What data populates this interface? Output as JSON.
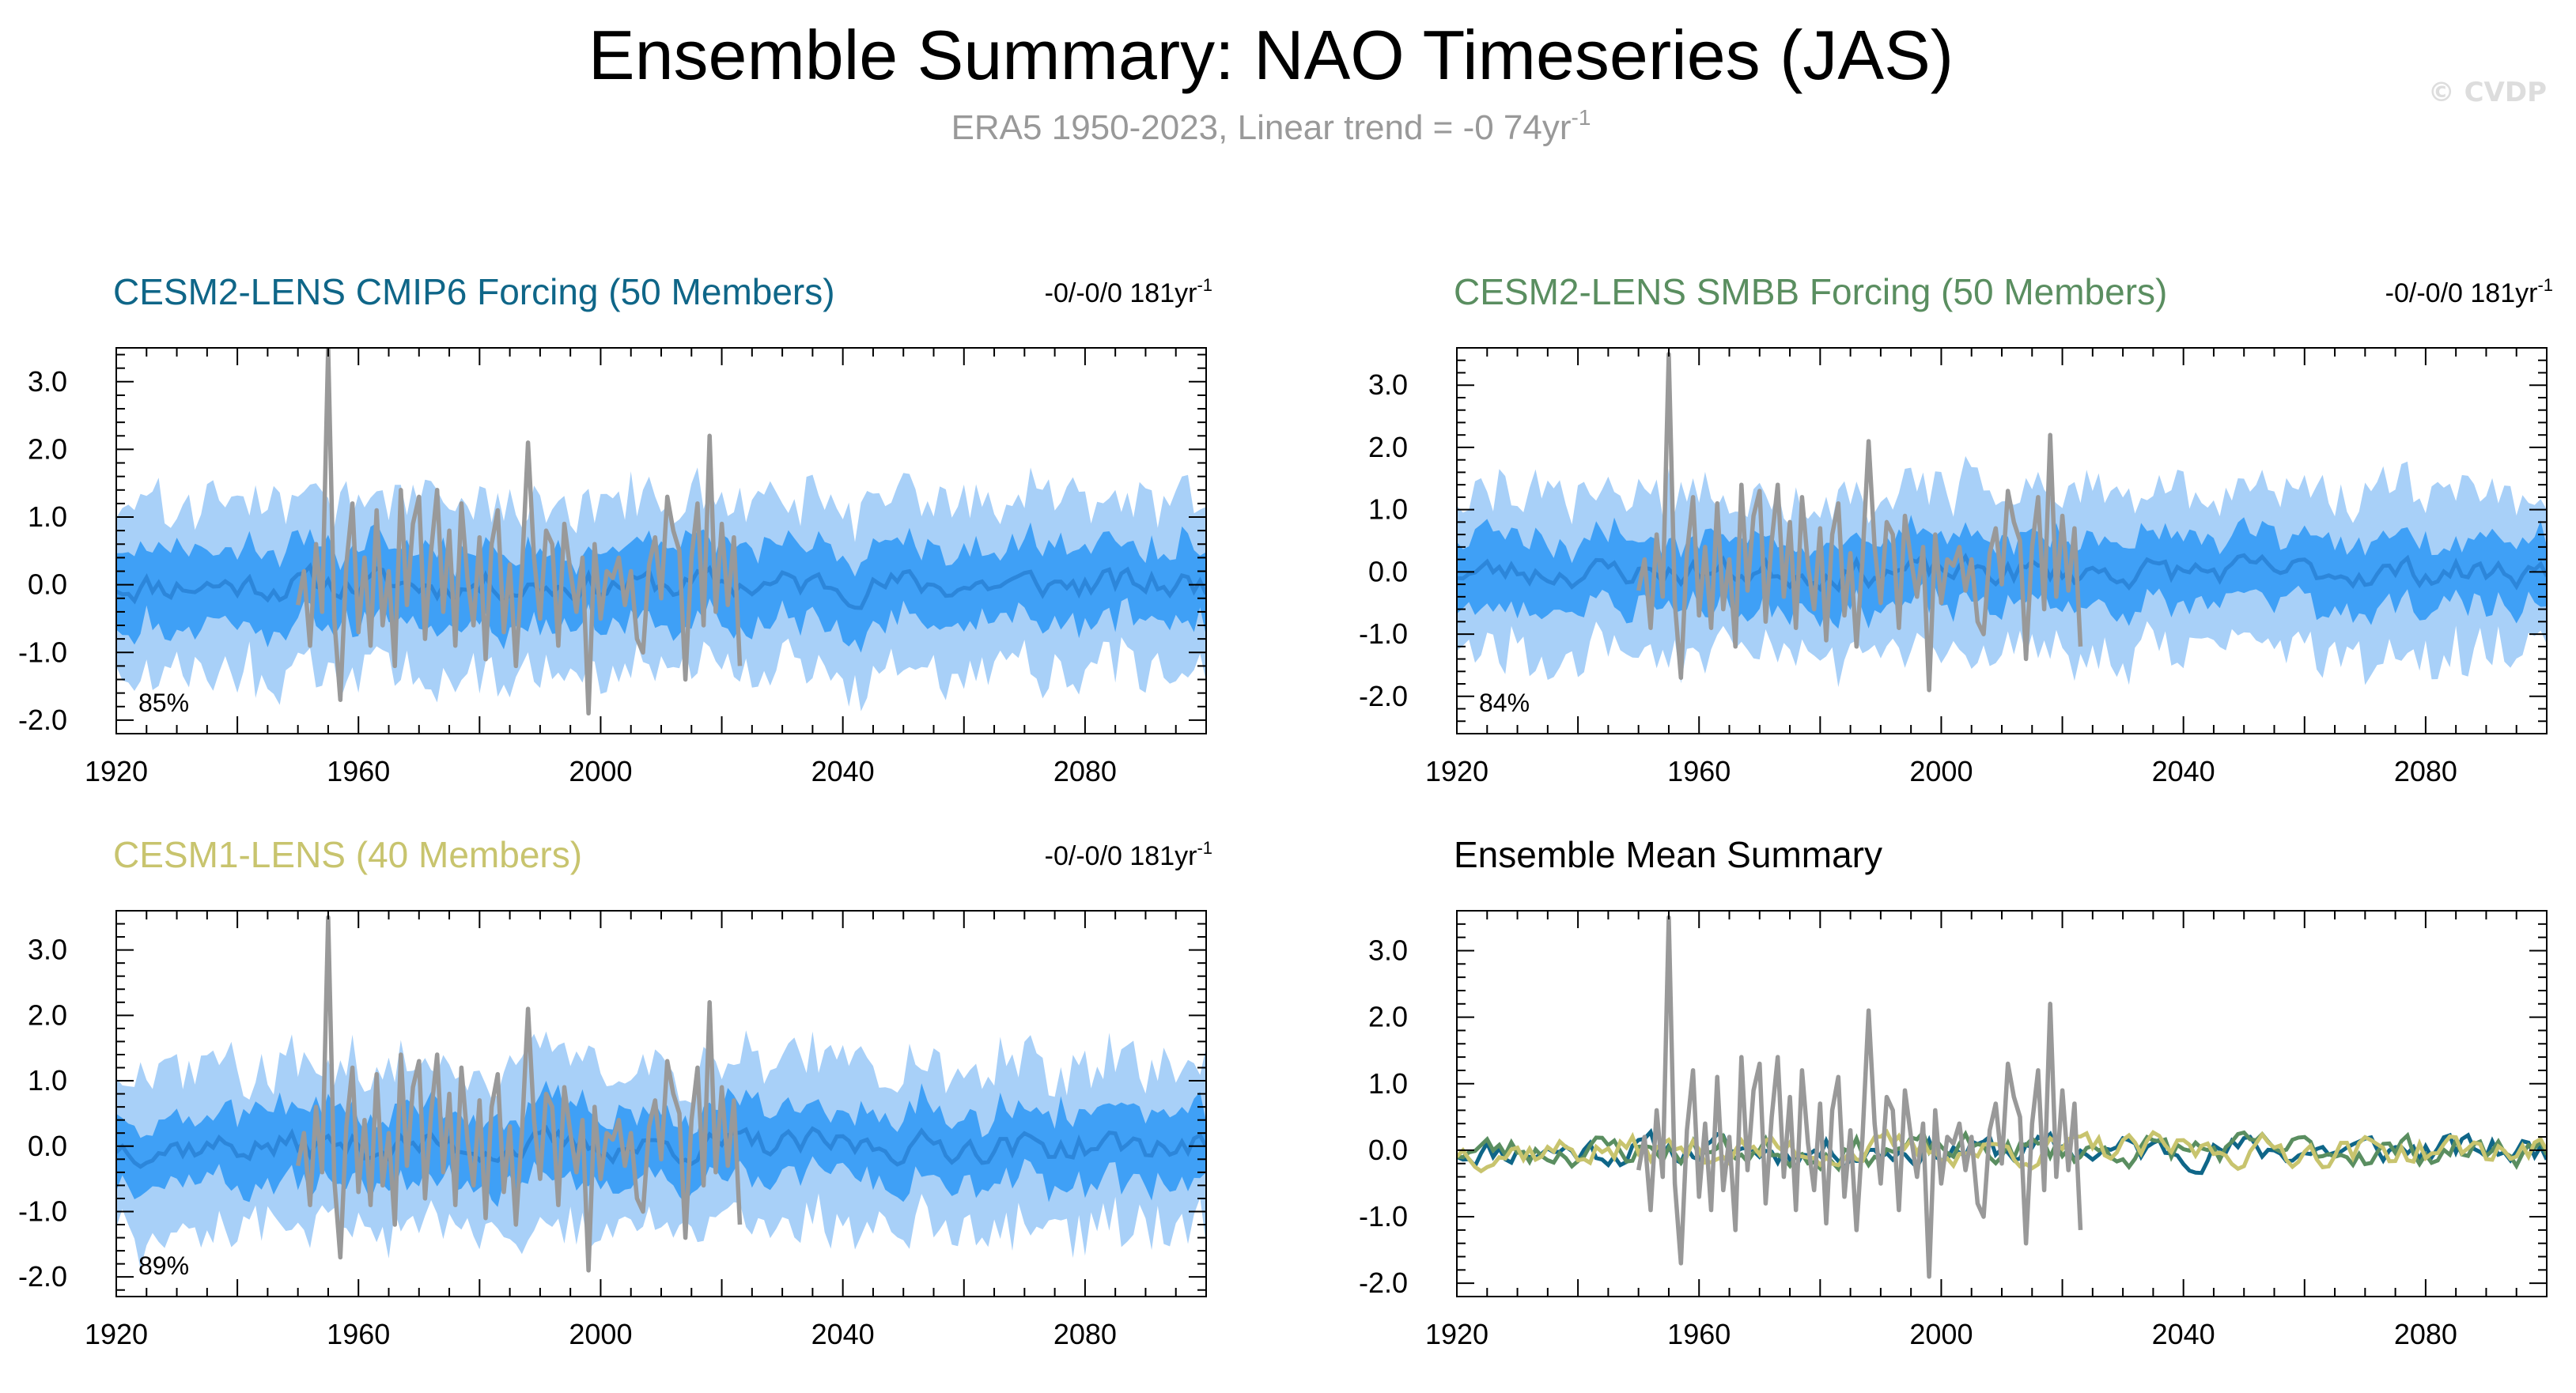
{
  "figure": {
    "title": "Ensemble Summary: NAO Timeseries (JAS)",
    "subtitle_text": "ERA5 1950-2023, Linear trend = -0 74yr",
    "subtitle_sup": "-1",
    "copyright": "© CVDP"
  },
  "colors": {
    "outer_band": "#a8d0f8",
    "inner_band": "#3fa0f6",
    "ens_mean_line": "#2c86da",
    "obs_line": "#999999",
    "cesm2_cmip6": "#0f6688",
    "cesm2_smbb": "#5a8e60",
    "cesm1": "#c8c46e",
    "summary_title": "#000000"
  },
  "chart_data": [
    {
      "type": "area",
      "title": "CESM2-LENS CMIP6 Forcing (50 Members)",
      "title_color": "#0f6688",
      "trend_text": "-0/-0/0 181yr",
      "trend_sup": "-1",
      "percent_label": "85%",
      "xlim": [
        1920,
        2100
      ],
      "ylim": [
        -2.2,
        3.5
      ],
      "x_ticks": [
        1920,
        1960,
        2000,
        2040,
        2080
      ],
      "x_tick_labels": [
        "1920",
        "1960",
        "2000",
        "2040",
        "2080"
      ],
      "y_ticks": [
        3.0,
        2.0,
        1.0,
        0.0,
        -1.0,
        -2.0
      ],
      "y_tick_labels": [
        "3.0",
        "2.0",
        "1.0",
        "0.0",
        "-1.0",
        "-2.0"
      ],
      "seed": 11,
      "ensemble": {
        "start_year": 1920,
        "end_year": 2100,
        "outer_half_width": 1.25,
        "inner_half_width": 0.55,
        "mean_amplitude": 0.12
      },
      "obs_series": {
        "name": "ERA5",
        "start_year": 1950,
        "end_year": 2023
      }
    },
    {
      "type": "area",
      "title": "CESM2-LENS SMBB Forcing (50 Members)",
      "title_color": "#5a8e60",
      "trend_text": "-0/-0/0 181yr",
      "trend_sup": "-1",
      "percent_label": "84%",
      "xlim": [
        1920,
        2100
      ],
      "ylim": [
        -2.6,
        3.6
      ],
      "x_ticks": [
        1920,
        1960,
        2000,
        2040,
        2080
      ],
      "x_tick_labels": [
        "1920",
        "1960",
        "2000",
        "2040",
        "2080"
      ],
      "y_ticks": [
        3.0,
        2.0,
        1.0,
        0.0,
        -1.0,
        -2.0
      ],
      "y_tick_labels": [
        "3.0",
        "2.0",
        "1.0",
        "0.0",
        "-1.0",
        "-2.0"
      ],
      "seed": 23,
      "ensemble": {
        "start_year": 1920,
        "end_year": 2100,
        "outer_half_width": 1.3,
        "inner_half_width": 0.55,
        "mean_amplitude": 0.12
      },
      "obs_series": {
        "name": "ERA5",
        "start_year": 1950,
        "end_year": 2023
      }
    },
    {
      "type": "area",
      "title": "CESM1-LENS (40 Members)",
      "title_color": "#c8c46e",
      "trend_text": "-0/-0/0 181yr",
      "trend_sup": "-1",
      "percent_label": "89%",
      "xlim": [
        1920,
        2100
      ],
      "ylim": [
        -2.3,
        3.6
      ],
      "x_ticks": [
        1920,
        1960,
        2000,
        2040,
        2080
      ],
      "x_tick_labels": [
        "1920",
        "1960",
        "2000",
        "2040",
        "2080"
      ],
      "y_ticks": [
        3.0,
        2.0,
        1.0,
        0.0,
        -1.0,
        -2.0
      ],
      "y_tick_labels": [
        "3.0",
        "2.0",
        "1.0",
        "0.0",
        "-1.0",
        "-2.0"
      ],
      "seed": 37,
      "ensemble": {
        "start_year": 1920,
        "end_year": 2100,
        "outer_half_width": 1.25,
        "inner_half_width": 0.55,
        "mean_amplitude": 0.12
      },
      "obs_series": {
        "name": "ERA5",
        "start_year": 1950,
        "end_year": 2023
      }
    },
    {
      "type": "line",
      "title": "Ensemble Mean Summary",
      "title_color": "#000000",
      "xlim": [
        1920,
        2100
      ],
      "ylim": [
        -2.2,
        3.6
      ],
      "x_ticks": [
        1920,
        1960,
        2000,
        2040,
        2080
      ],
      "x_tick_labels": [
        "1920",
        "1960",
        "2000",
        "2040",
        "2080"
      ],
      "y_ticks": [
        3.0,
        2.0,
        1.0,
        0.0,
        -1.0,
        -2.0
      ],
      "y_tick_labels": [
        "3.0",
        "2.0",
        "1.0",
        "0.0",
        "-1.0",
        "-2.0"
      ],
      "series": [
        {
          "color": "#0f6688",
          "seed": 11,
          "start_year": 1920,
          "end_year": 2100
        },
        {
          "color": "#5a8e60",
          "seed": 23,
          "start_year": 1920,
          "end_year": 2100
        },
        {
          "color": "#c8c46e",
          "seed": 37,
          "start_year": 1920,
          "end_year": 2100
        }
      ],
      "obs_series": {
        "name": "ERA5",
        "start_year": 1950,
        "end_year": 2023
      }
    }
  ],
  "obs_values": [
    {
      "x": 1950,
      "y": -0.3
    },
    {
      "x": 1951,
      "y": 0.2
    },
    {
      "x": 1952,
      "y": -0.9
    },
    {
      "x": 1953,
      "y": 0.6
    },
    {
      "x": 1954,
      "y": -0.4
    },
    {
      "x": 1955,
      "y": 3.5
    },
    {
      "x": 1956,
      "y": -0.5
    },
    {
      "x": 1957,
      "y": -1.7
    },
    {
      "x": 1958,
      "y": 0.3
    },
    {
      "x": 1959,
      "y": 1.2
    },
    {
      "x": 1960,
      "y": -0.7
    },
    {
      "x": 1961,
      "y": 0.4
    },
    {
      "x": 1962,
      "y": -0.9
    },
    {
      "x": 1963,
      "y": 1.1
    },
    {
      "x": 1964,
      "y": -0.6
    },
    {
      "x": 1965,
      "y": 0.2
    },
    {
      "x": 1966,
      "y": -1.2
    },
    {
      "x": 1967,
      "y": 1.4
    },
    {
      "x": 1968,
      "y": -0.3
    },
    {
      "x": 1969,
      "y": 0.9
    },
    {
      "x": 1970,
      "y": 1.3
    },
    {
      "x": 1971,
      "y": -0.8
    },
    {
      "x": 1972,
      "y": 0.5
    },
    {
      "x": 1973,
      "y": 1.4
    },
    {
      "x": 1974,
      "y": -0.4
    },
    {
      "x": 1975,
      "y": 0.8
    },
    {
      "x": 1976,
      "y": -0.9
    },
    {
      "x": 1977,
      "y": 1.2
    },
    {
      "x": 1978,
      "y": 0.1
    },
    {
      "x": 1979,
      "y": -0.6
    },
    {
      "x": 1980,
      "y": 0.7
    },
    {
      "x": 1981,
      "y": -1.1
    },
    {
      "x": 1982,
      "y": 0.6
    },
    {
      "x": 1983,
      "y": 1.1
    },
    {
      "x": 1984,
      "y": -0.7
    },
    {
      "x": 1985,
      "y": 0.3
    },
    {
      "x": 1986,
      "y": -1.2
    },
    {
      "x": 1987,
      "y": 0.2
    },
    {
      "x": 1988,
      "y": 2.1
    },
    {
      "x": 1989,
      "y": 0.4
    },
    {
      "x": 1990,
      "y": -0.5
    },
    {
      "x": 1991,
      "y": 0.8
    },
    {
      "x": 1992,
      "y": 0.6
    },
    {
      "x": 1993,
      "y": -0.9
    },
    {
      "x": 1994,
      "y": 0.9
    },
    {
      "x": 1995,
      "y": 0.2
    },
    {
      "x": 1996,
      "y": -0.4
    },
    {
      "x": 1997,
      "y": 0.4
    },
    {
      "x": 1998,
      "y": -1.9
    },
    {
      "x": 1999,
      "y": 0.6
    },
    {
      "x": 2000,
      "y": -0.5
    },
    {
      "x": 2001,
      "y": 0.2
    },
    {
      "x": 2002,
      "y": 0.1
    },
    {
      "x": 2003,
      "y": 0.4
    },
    {
      "x": 2004,
      "y": -0.3
    },
    {
      "x": 2005,
      "y": 0.2
    },
    {
      "x": 2006,
      "y": -0.8
    },
    {
      "x": 2007,
      "y": -1.0
    },
    {
      "x": 2008,
      "y": 0.3
    },
    {
      "x": 2009,
      "y": 0.7
    },
    {
      "x": 2010,
      "y": -0.2
    },
    {
      "x": 2011,
      "y": 1.3
    },
    {
      "x": 2012,
      "y": 0.8
    },
    {
      "x": 2013,
      "y": 0.5
    },
    {
      "x": 2014,
      "y": -1.4
    },
    {
      "x": 2015,
      "y": 0.4
    },
    {
      "x": 2016,
      "y": 1.2
    },
    {
      "x": 2017,
      "y": -0.6
    },
    {
      "x": 2018,
      "y": 2.2
    },
    {
      "x": 2019,
      "y": -0.4
    },
    {
      "x": 2020,
      "y": 0.9
    },
    {
      "x": 2021,
      "y": -0.3
    },
    {
      "x": 2022,
      "y": 0.7
    },
    {
      "x": 2023,
      "y": -1.2
    }
  ]
}
